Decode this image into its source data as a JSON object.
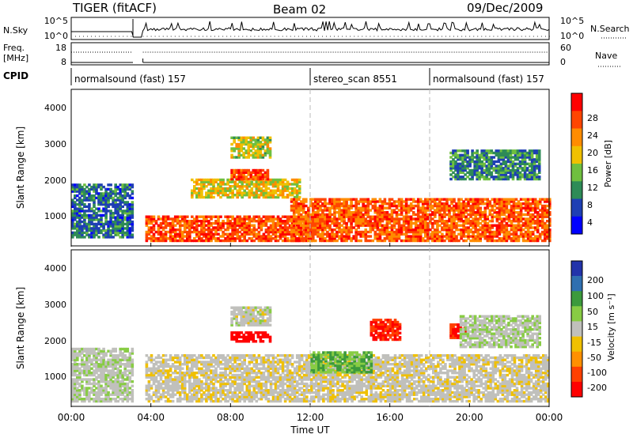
{
  "header": {
    "title": "TIGER (fitACF)",
    "beam": "Beam 02",
    "date": "09/Dec/2009"
  },
  "nsky_panel": {
    "left_label": "N.Sky",
    "left_ticks": [
      "10^5",
      "10^0"
    ],
    "right_label": "N.Search",
    "right_ticks": [
      "10^5",
      "10^0"
    ]
  },
  "freq_panel": {
    "left_label_1": "Freq.",
    "left_label_2": "[MHz]",
    "left_ticks": [
      "18",
      "8"
    ],
    "right_label": "Nave",
    "right_ticks": [
      "60",
      "0"
    ]
  },
  "cpid": {
    "label": "CPID",
    "segments": [
      {
        "label": "normalsound (fast) 157",
        "start": 0,
        "end": 12
      },
      {
        "label": "stereo_scan 8551",
        "start": 12,
        "end": 18
      },
      {
        "label": "normalsound (fast) 157",
        "start": 18,
        "end": 24
      }
    ]
  },
  "power_panel": {
    "ylabel": "Slant Range [km]",
    "yticks": [
      "4000",
      "3000",
      "2000",
      "1000"
    ],
    "colorbar_label": "Power [dB]",
    "colorbar_ticks": [
      "28",
      "24",
      "20",
      "16",
      "12",
      "8",
      "4"
    ]
  },
  "velocity_panel": {
    "ylabel": "Slant Range [km]",
    "yticks": [
      "4000",
      "3000",
      "2000",
      "1000"
    ],
    "colorbar_label": "Velocity [m s⁻¹]",
    "colorbar_ticks": [
      "200",
      "100",
      "50",
      "15",
      "-15",
      "-50",
      "-100",
      "-200"
    ]
  },
  "xaxis": {
    "label": "Time UT",
    "ticks": [
      "00:00",
      "04:00",
      "08:00",
      "12:00",
      "16:00",
      "20:00",
      "00:00"
    ]
  },
  "colors": {
    "power_scale": [
      "#0000ff",
      "#1e3fb4",
      "#2e8b57",
      "#6fbf3f",
      "#f0c000",
      "#ff8c00",
      "#ff4500",
      "#ff0000"
    ],
    "velocity_scale": [
      "#2233aa",
      "#2f6fb0",
      "#3c9a3c",
      "#88cc44",
      "#c0c0bc",
      "#f0c000",
      "#ff9000",
      "#ff4000",
      "#ff0000"
    ]
  },
  "chart_data": {
    "type": "heatmap",
    "x_range_hours": [
      0,
      24
    ],
    "y_range_km": [
      180,
      4500
    ],
    "data_gap_hours": [
      3.1,
      3.6
    ],
    "power_dB_range": [
      0,
      32
    ],
    "velocity_range": [
      -250,
      250
    ],
    "velocity_unit": "m s^-1",
    "power_features": [
      {
        "t_start": 0.0,
        "t_end": 3.1,
        "r_min": 400,
        "r_max": 1900,
        "level_dB": 10
      },
      {
        "t_start": 3.6,
        "t_end": 12.0,
        "r_min": 300,
        "r_max": 1000,
        "level_dB": 28
      },
      {
        "t_start": 6.0,
        "t_end": 11.5,
        "r_min": 1500,
        "r_max": 2000,
        "level_dB": 20
      },
      {
        "t_start": 8.0,
        "t_end": 9.8,
        "r_min": 2000,
        "r_max": 2250,
        "level_dB": 28
      },
      {
        "t_start": 8.0,
        "t_end": 10.0,
        "r_min": 2600,
        "r_max": 3200,
        "level_dB": 18
      },
      {
        "t_start": 11.0,
        "t_end": 24.0,
        "r_min": 300,
        "r_max": 1500,
        "level_dB": 27
      },
      {
        "t_start": 19.0,
        "t_end": 23.5,
        "r_min": 2000,
        "r_max": 2800,
        "level_dB": 12
      }
    ],
    "velocity_features": [
      {
        "t_start": 0.0,
        "t_end": 3.1,
        "r_min": 300,
        "r_max": 1800,
        "velocity": 5
      },
      {
        "t_start": 3.6,
        "t_end": 24.0,
        "r_min": 300,
        "r_max": 1600,
        "velocity": -5
      },
      {
        "t_start": 8.0,
        "t_end": 10.0,
        "r_min": 1950,
        "r_max": 2250,
        "velocity": -220
      },
      {
        "t_start": 8.0,
        "t_end": 10.0,
        "r_min": 2400,
        "r_max": 2900,
        "velocity": 0
      },
      {
        "t_start": 12.0,
        "t_end": 15.0,
        "r_min": 1100,
        "r_max": 1700,
        "velocity": 50
      },
      {
        "t_start": 15.0,
        "t_end": 16.5,
        "r_min": 2000,
        "r_max": 2600,
        "velocity": -200
      },
      {
        "t_start": 19.0,
        "t_end": 19.8,
        "r_min": 2050,
        "r_max": 2450,
        "velocity": -200
      },
      {
        "t_start": 19.5,
        "t_end": 23.5,
        "r_min": 1800,
        "r_max": 2700,
        "velocity": 10
      }
    ]
  }
}
